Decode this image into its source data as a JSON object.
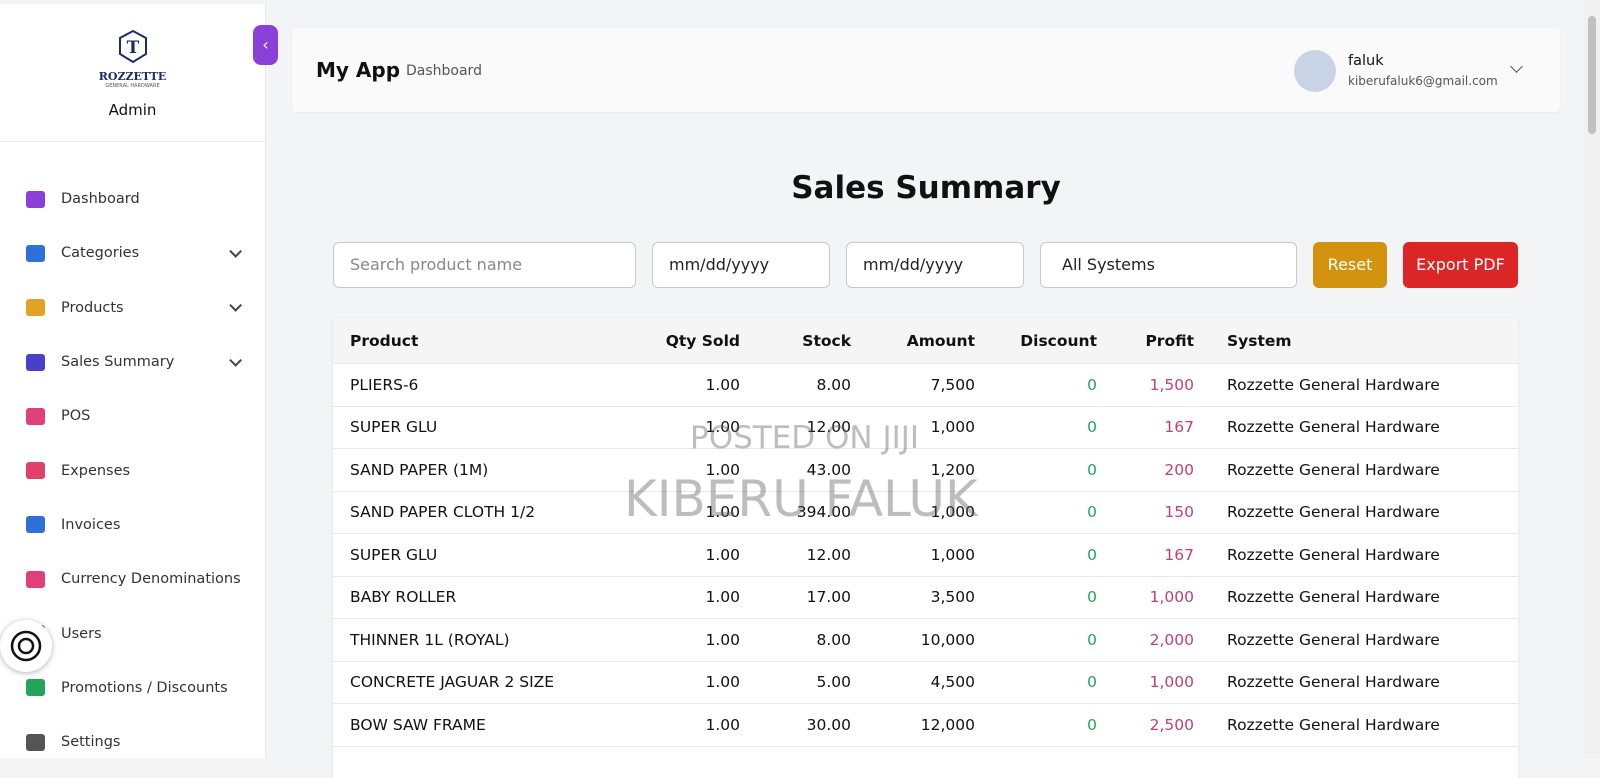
{
  "sidebar": {
    "logo": {
      "brand": "ROZZETTE",
      "tagline": "GENERAL HARDWARE"
    },
    "role": "Admin",
    "nav": [
      {
        "label": "Dashboard",
        "color": "#8b3fd9",
        "expandable": false
      },
      {
        "label": "Categories",
        "color": "#2f6fd8",
        "expandable": true
      },
      {
        "label": "Products",
        "color": "#e0a325",
        "expandable": true
      },
      {
        "label": "Sales Summary",
        "color": "#4a3fc9",
        "expandable": true
      },
      {
        "label": "POS",
        "color": "#e0407a",
        "expandable": false
      },
      {
        "label": "Expenses",
        "color": "#e0406a",
        "expandable": false
      },
      {
        "label": "Invoices",
        "color": "#2f6fd8",
        "expandable": false
      },
      {
        "label": "Currency Denominations",
        "color": "#e0407a",
        "expandable": false
      },
      {
        "label": "Users",
        "color": "#e04040",
        "expandable": false
      },
      {
        "label": "Promotions / Discounts",
        "color": "#22a55b",
        "expandable": false
      },
      {
        "label": "Settings",
        "color": "#555555",
        "expandable": false
      }
    ]
  },
  "header": {
    "app": "My App",
    "breadcrumb": "Dashboard",
    "user": {
      "name": "faluk",
      "email": "kiberufaluk6@gmail.com"
    }
  },
  "main": {
    "title": "Sales Summary",
    "filters": {
      "search": "Search product name",
      "date_from": "mm/dd/yyyy",
      "date_to": "mm/dd/yyyy",
      "system": "All Systems",
      "reset": "Reset",
      "export": "Export PDF"
    },
    "table": {
      "columns": [
        "Product",
        "Qty Sold",
        "Stock",
        "Amount",
        "Discount",
        "Profit",
        "System"
      ],
      "rows": [
        [
          "PLIERS-6",
          "1.00",
          "8.00",
          "7,500",
          "0",
          "1,500",
          "Rozzette General Hardware"
        ],
        [
          "SUPER GLU",
          "1.00",
          "12.00",
          "1,000",
          "0",
          "167",
          "Rozzette General Hardware"
        ],
        [
          "SAND PAPER (1M)",
          "1.00",
          "43.00",
          "1,200",
          "0",
          "200",
          "Rozzette General Hardware"
        ],
        [
          "SAND PAPER CLOTH 1/2",
          "1.00",
          "394.00",
          "1,000",
          "0",
          "150",
          "Rozzette General Hardware"
        ],
        [
          "SUPER GLU",
          "1.00",
          "12.00",
          "1,000",
          "0",
          "167",
          "Rozzette General Hardware"
        ],
        [
          "BABY ROLLER",
          "1.00",
          "17.00",
          "3,500",
          "0",
          "1,000",
          "Rozzette General Hardware"
        ],
        [
          "THINNER 1L (ROYAL)",
          "1.00",
          "8.00",
          "10,000",
          "0",
          "2,000",
          "Rozzette General Hardware"
        ],
        [
          "CONCRETE JAGUAR 2 SIZE",
          "1.00",
          "5.00",
          "4,500",
          "0",
          "1,000",
          "Rozzette General Hardware"
        ],
        [
          "BOW SAW FRAME",
          "1.00",
          "30.00",
          "12,000",
          "0",
          "2,500",
          "Rozzette General Hardware"
        ]
      ]
    }
  },
  "watermark": {
    "line1": "POSTED ON JIJI",
    "line2": "KIBERU FALUK"
  }
}
